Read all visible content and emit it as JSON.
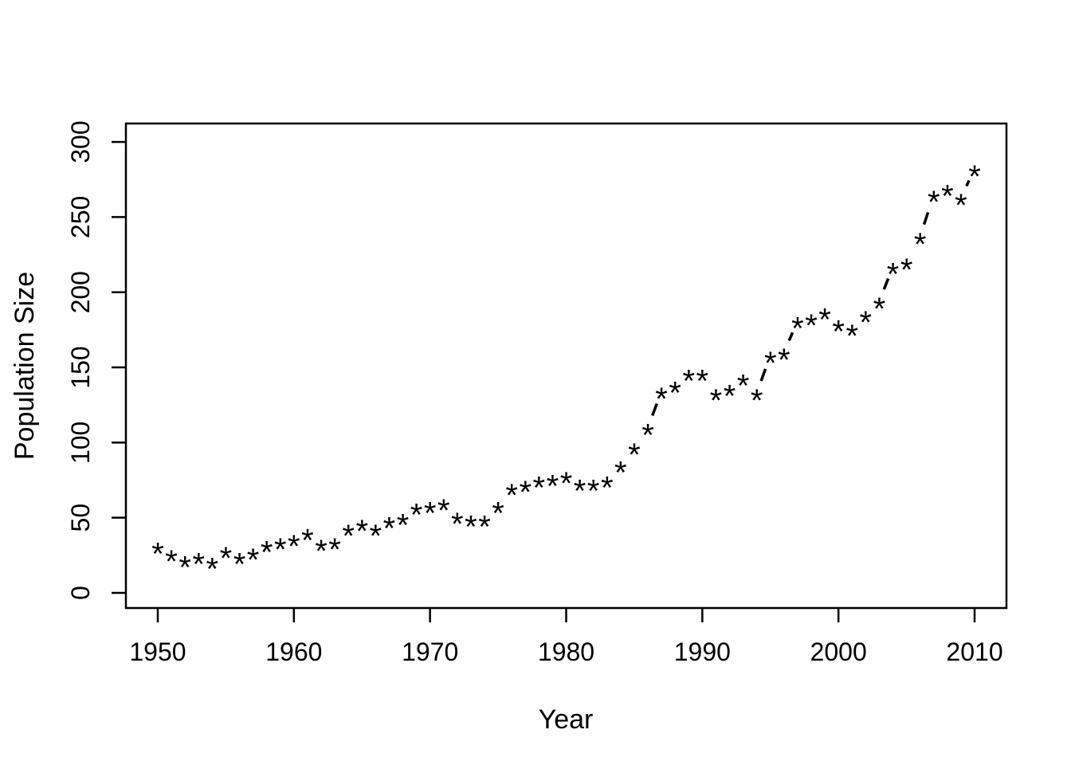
{
  "chart_data": {
    "type": "scatter",
    "title": "",
    "xlabel": "Year",
    "ylabel": "Population Size",
    "marker": "*",
    "connector_line_style": "dashed",
    "grid": false,
    "legend": null,
    "color": "#000000",
    "background": "#ffffff",
    "xlim": [
      1947.66,
      2012.34
    ],
    "ylim": [
      -10.07,
      312.24
    ],
    "xticks": [
      1950,
      1960,
      1970,
      1980,
      1990,
      2000,
      2010
    ],
    "yticks": [
      0,
      50,
      100,
      150,
      200,
      250,
      300
    ],
    "x": [
      1950,
      1951,
      1952,
      1953,
      1954,
      1955,
      1956,
      1957,
      1958,
      1959,
      1960,
      1961,
      1962,
      1963,
      1964,
      1965,
      1966,
      1967,
      1968,
      1969,
      1970,
      1971,
      1972,
      1973,
      1974,
      1975,
      1976,
      1977,
      1978,
      1979,
      1980,
      1981,
      1982,
      1983,
      1984,
      1985,
      1986,
      1987,
      1988,
      1989,
      1990,
      1991,
      1992,
      1993,
      1994,
      1995,
      1996,
      1997,
      1998,
      1999,
      2000,
      2001,
      2002,
      2003,
      2004,
      2005,
      2006,
      2007,
      2008,
      2009,
      2010
    ],
    "y": [
      31,
      26,
      22,
      24,
      21,
      28,
      24,
      27,
      32,
      34,
      36,
      40,
      33,
      34,
      43,
      46,
      43,
      48,
      50,
      57,
      58,
      60,
      51,
      49,
      49,
      58,
      70,
      72,
      75,
      76,
      78,
      73,
      73,
      75,
      85,
      97,
      110,
      134,
      138,
      146,
      146,
      133,
      136,
      143,
      133,
      158,
      160,
      181,
      183,
      187,
      179,
      176,
      185,
      194,
      217,
      220,
      237,
      265,
      269,
      263,
      282
    ]
  }
}
